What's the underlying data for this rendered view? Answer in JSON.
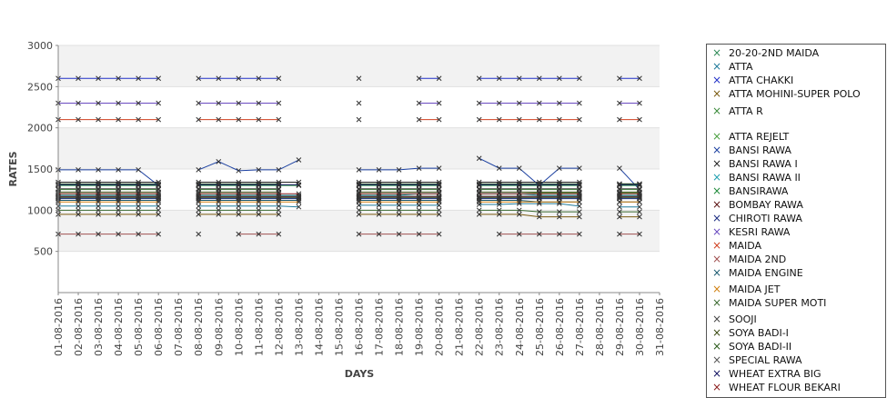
{
  "chart_data": {
    "type": "line",
    "xlabel": "DAYS",
    "ylabel": "RATES",
    "ylim": [
      0,
      3000
    ],
    "yticks": [
      500,
      1000,
      1500,
      2000,
      2500,
      3000
    ],
    "grid": true,
    "legend_position": "right",
    "categories": [
      "01-08-2016",
      "02-08-2016",
      "03-08-2016",
      "04-08-2016",
      "05-08-2016",
      "06-08-2016",
      "07-08-2016",
      "08-08-2016",
      "09-08-2016",
      "10-08-2016",
      "11-08-2016",
      "12-08-2016",
      "13-08-2016",
      "14-08-2016",
      "15-08-2016",
      "16-08-2016",
      "17-08-2016",
      "18-08-2016",
      "19-08-2016",
      "20-08-2016",
      "21-08-2016",
      "22-08-2016",
      "23-08-2016",
      "24-08-2016",
      "25-08-2016",
      "26-08-2016",
      "27-08-2016",
      "28-08-2016",
      "29-08-2016",
      "30-08-2016",
      "31-08-2016"
    ],
    "series": [
      {
        "name": "20-20-2ND MAIDA",
        "color": "#2e8b57",
        "values": [
          1150,
          1150,
          1150,
          1150,
          1150,
          1150,
          null,
          1150,
          1150,
          1150,
          1150,
          1150,
          1150,
          null,
          null,
          1150,
          1150,
          1150,
          1150,
          1150,
          null,
          1150,
          1150,
          1150,
          1150,
          1150,
          1150,
          null,
          1150,
          1150,
          null
        ]
      },
      {
        "name": "ATTA",
        "color": "#1f7a9a",
        "values": [
          1050,
          1050,
          1050,
          1050,
          1050,
          1050,
          null,
          1050,
          1050,
          1050,
          1050,
          1050,
          1040,
          null,
          null,
          1060,
          1060,
          1060,
          1060,
          1060,
          null,
          1070,
          1070,
          1080,
          1080,
          1080,
          1050,
          null,
          1040,
          1040,
          null
        ]
      },
      {
        "name": "ATTA CHAKKI",
        "color": "#2030c8",
        "values": [
          2600,
          2600,
          2600,
          2600,
          2600,
          2600,
          null,
          2600,
          2600,
          2600,
          2600,
          2600,
          null,
          null,
          null,
          2600,
          null,
          null,
          2600,
          2600,
          null,
          2600,
          2600,
          2600,
          2600,
          2600,
          2600,
          null,
          2600,
          2600,
          null
        ]
      },
      {
        "name": "ATTA MOHINI-SUPER POLO",
        "color": "#7a5a10",
        "values": [
          950,
          950,
          950,
          950,
          950,
          950,
          null,
          950,
          950,
          950,
          950,
          950,
          null,
          null,
          null,
          950,
          950,
          950,
          950,
          950,
          null,
          950,
          950,
          950,
          920,
          920,
          920,
          null,
          920,
          920,
          null
        ]
      },
      {
        "name": "ATTA R",
        "color": "#3a8a3a",
        "values": [
          1250,
          1250,
          1250,
          1250,
          1250,
          1250,
          null,
          1250,
          1250,
          1250,
          1250,
          1250,
          null,
          null,
          null,
          1250,
          1250,
          1250,
          1250,
          1250,
          null,
          1250,
          1250,
          1250,
          1250,
          1250,
          1250,
          null,
          1250,
          1250,
          null
        ]
      },
      {
        "name": "ATTA REJELT",
        "color": "#4aa040",
        "values": [
          1200,
          1200,
          1200,
          1200,
          1200,
          1200,
          null,
          1200,
          1200,
          1200,
          1200,
          1200,
          null,
          null,
          null,
          1200,
          1200,
          1200,
          1200,
          1200,
          null,
          1200,
          1200,
          1200,
          1210,
          1210,
          1210,
          null,
          1210,
          1210,
          null
        ]
      },
      {
        "name": "BANSI RAWA",
        "color": "#1a3fa0",
        "values": [
          1490,
          1490,
          1490,
          1490,
          1490,
          1300,
          null,
          1490,
          1590,
          1480,
          1490,
          1490,
          1610,
          null,
          null,
          1490,
          1490,
          1490,
          1510,
          1510,
          null,
          1630,
          1510,
          1510,
          1300,
          1510,
          1510,
          null,
          1510,
          1250,
          null
        ]
      },
      {
        "name": "BANSI RAWA I",
        "color": "#222222",
        "values": [
          1340,
          1340,
          1340,
          1340,
          1340,
          1340,
          null,
          1340,
          1340,
          1340,
          1340,
          1340,
          1340,
          null,
          null,
          1340,
          1340,
          1340,
          1340,
          1340,
          null,
          1340,
          1340,
          1340,
          1340,
          1340,
          1340,
          null,
          1320,
          1320,
          null
        ]
      },
      {
        "name": "BANSI RAWA II",
        "color": "#20a0b0",
        "values": [
          1180,
          1180,
          1180,
          1180,
          1180,
          1180,
          null,
          1180,
          1180,
          1180,
          1180,
          1180,
          1180,
          null,
          null,
          1180,
          1180,
          1180,
          1200,
          1200,
          null,
          1200,
          1200,
          1200,
          1180,
          1180,
          1180,
          null,
          1180,
          1180,
          null
        ]
      },
      {
        "name": "BANSIRAWA",
        "color": "#1f8a3a",
        "values": [
          1300,
          1300,
          1300,
          1300,
          1300,
          1300,
          null,
          1300,
          1300,
          1300,
          1300,
          1300,
          1300,
          null,
          null,
          1300,
          1300,
          1300,
          1300,
          1300,
          null,
          1300,
          1300,
          1300,
          1300,
          1300,
          1300,
          null,
          1300,
          1300,
          null
        ]
      },
      {
        "name": "BOMBAY RAWA",
        "color": "#5a1010",
        "values": [
          1160,
          1160,
          1160,
          1160,
          1160,
          1160,
          null,
          1160,
          1160,
          1160,
          1160,
          1160,
          1160,
          null,
          null,
          1160,
          1160,
          1160,
          1160,
          1160,
          null,
          1160,
          1160,
          1160,
          1160,
          1160,
          1160,
          null,
          1160,
          1160,
          null
        ]
      },
      {
        "name": "CHIROTI RAWA",
        "color": "#1a2a80",
        "values": [
          1140,
          1140,
          1140,
          1140,
          1140,
          1140,
          null,
          1140,
          1140,
          1140,
          1140,
          1140,
          1140,
          null,
          null,
          1140,
          1140,
          1140,
          1140,
          1140,
          null,
          1140,
          1140,
          1140,
          1140,
          1140,
          1140,
          null,
          1140,
          1140,
          null
        ]
      },
      {
        "name": "KESRI RAWA",
        "color": "#6a4ac0",
        "values": [
          2300,
          2300,
          2300,
          2300,
          2300,
          2300,
          null,
          2300,
          2300,
          2300,
          2300,
          2300,
          null,
          null,
          null,
          2300,
          null,
          null,
          2300,
          2300,
          null,
          2300,
          2300,
          2300,
          2300,
          2300,
          2300,
          null,
          2300,
          2300,
          null
        ]
      },
      {
        "name": "MAIDA",
        "color": "#d04020",
        "values": [
          2100,
          2100,
          2100,
          2100,
          2100,
          2100,
          null,
          2100,
          2100,
          2100,
          2100,
          2100,
          null,
          null,
          null,
          2100,
          null,
          null,
          2100,
          2100,
          null,
          2100,
          2100,
          2100,
          2100,
          2100,
          2100,
          null,
          2100,
          2100,
          null
        ]
      },
      {
        "name": "MAIDA 2ND",
        "color": "#a05050",
        "values": [
          710,
          710,
          710,
          710,
          710,
          710,
          null,
          710,
          null,
          710,
          710,
          710,
          null,
          null,
          null,
          710,
          710,
          710,
          710,
          710,
          null,
          null,
          710,
          710,
          710,
          710,
          710,
          null,
          710,
          710,
          null
        ]
      },
      {
        "name": "MAIDA ENGINE",
        "color": "#1a5a70",
        "values": [
          1120,
          1120,
          1120,
          1120,
          1120,
          1120,
          null,
          1120,
          1120,
          1120,
          1120,
          1120,
          1120,
          null,
          null,
          1120,
          1120,
          1120,
          1120,
          1120,
          null,
          1120,
          1120,
          1120,
          1100,
          1100,
          1100,
          null,
          1100,
          1100,
          null
        ]
      },
      {
        "name": "MAIDA JET",
        "color": "#d08010",
        "values": [
          1100,
          1100,
          1100,
          1100,
          1100,
          1100,
          null,
          1100,
          1100,
          1100,
          1100,
          1100,
          1100,
          null,
          null,
          1100,
          1100,
          1100,
          1100,
          1100,
          null,
          1100,
          1100,
          1100,
          1100,
          1100,
          1100,
          null,
          1100,
          1100,
          null
        ]
      },
      {
        "name": "MAIDA SUPER MOTI",
        "color": "#3a6a30",
        "values": [
          1000,
          1000,
          1000,
          1000,
          1000,
          1000,
          null,
          1000,
          1000,
          1000,
          1000,
          1000,
          null,
          null,
          null,
          1000,
          1000,
          1000,
          1000,
          1000,
          null,
          1000,
          1000,
          1000,
          980,
          980,
          980,
          null,
          980,
          980,
          null
        ]
      },
      {
        "name": "SOOJI",
        "color": "#444444",
        "values": [
          1260,
          1260,
          1260,
          1260,
          1260,
          1260,
          null,
          1260,
          1260,
          1260,
          1260,
          1260,
          null,
          null,
          null,
          1260,
          1260,
          1260,
          1260,
          1260,
          null,
          1260,
          1260,
          1260,
          1260,
          1260,
          1260,
          null,
          1260,
          1260,
          null
        ]
      },
      {
        "name": "SOYA BADI-I",
        "color": "#3a4a10",
        "values": [
          1220,
          1220,
          1220,
          1220,
          1220,
          1220,
          null,
          1220,
          1220,
          1220,
          1220,
          1220,
          null,
          null,
          null,
          1220,
          1220,
          1220,
          1220,
          1220,
          null,
          1220,
          1220,
          1220,
          1220,
          1220,
          1220,
          null,
          1220,
          1220,
          null
        ]
      },
      {
        "name": "SOYA BADI-II",
        "color": "#2a5a1a",
        "values": [
          1320,
          1320,
          1320,
          1320,
          1320,
          1320,
          null,
          1320,
          1320,
          1320,
          1320,
          1320,
          null,
          null,
          null,
          1320,
          1320,
          1320,
          1320,
          1320,
          null,
          1320,
          1320,
          1320,
          1320,
          1320,
          1320,
          null,
          1320,
          1320,
          null
        ]
      },
      {
        "name": "SPECIAL RAWA",
        "color": "#555555",
        "values": [
          1170,
          1170,
          1170,
          1170,
          1170,
          1170,
          null,
          1170,
          1170,
          1170,
          1170,
          1170,
          1170,
          null,
          null,
          1170,
          1170,
          1170,
          1170,
          1170,
          null,
          1170,
          1170,
          1170,
          1170,
          1170,
          1170,
          null,
          1170,
          1170,
          null
        ]
      },
      {
        "name": "WHEAT EXTRA BIG",
        "color": "#101060",
        "values": [
          1310,
          1310,
          1310,
          1310,
          1310,
          1310,
          null,
          1310,
          1310,
          1310,
          1310,
          1310,
          1310,
          null,
          null,
          1310,
          1310,
          1310,
          1310,
          1310,
          null,
          1310,
          1310,
          1310,
          1310,
          1310,
          1310,
          null,
          1310,
          1310,
          null
        ]
      },
      {
        "name": "WHEAT FLOUR BEKARI",
        "color": "#8a1a1a",
        "values": [
          1200,
          1200,
          1200,
          1200,
          1200,
          1200,
          null,
          1200,
          1200,
          1200,
          1200,
          1200,
          1200,
          null,
          null,
          1200,
          1200,
          1200,
          1200,
          1200,
          null,
          1200,
          1200,
          1200,
          1200,
          1200,
          1200,
          null,
          1200,
          1200,
          null
        ]
      }
    ]
  }
}
